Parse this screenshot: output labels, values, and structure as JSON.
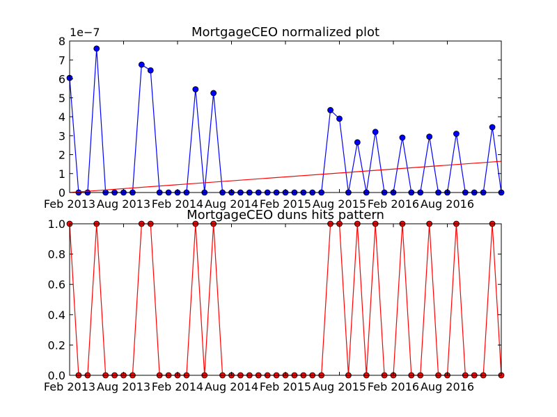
{
  "chart_data": [
    {
      "type": "line",
      "title": "MortgageCEO normalized plot",
      "xlabel": "",
      "ylabel": "",
      "y_offset_label": "1e−7",
      "x": [
        "2013-02",
        "2013-03",
        "2013-04",
        "2013-05",
        "2013-06",
        "2013-07",
        "2013-08",
        "2013-09",
        "2013-10",
        "2013-11",
        "2013-12",
        "2014-01",
        "2014-02",
        "2014-03",
        "2014-04",
        "2014-05",
        "2014-06",
        "2014-07",
        "2014-08",
        "2014-09",
        "2014-10",
        "2014-11",
        "2014-12",
        "2015-01",
        "2015-02",
        "2015-03",
        "2015-04",
        "2015-05",
        "2015-06",
        "2015-07",
        "2015-08",
        "2015-09",
        "2015-10",
        "2015-11",
        "2015-12",
        "2016-01",
        "2016-02",
        "2016-03",
        "2016-04",
        "2016-05",
        "2016-06",
        "2016-07",
        "2016-08",
        "2016-09",
        "2016-10",
        "2016-11",
        "2016-12",
        "2017-01",
        "2017-02"
      ],
      "xlim": [
        "2013-02",
        "2017-02"
      ],
      "ylim": [
        0,
        8
      ],
      "yticks": [
        "0",
        "1",
        "2",
        "3",
        "4",
        "5",
        "6",
        "7",
        "8"
      ],
      "xtick_labels": [
        "Feb 2013",
        "Aug 2013",
        "Feb 2014",
        "Aug 2014",
        "Feb 2015",
        "Aug 2015",
        "Feb 2016",
        "Aug 2016"
      ],
      "xtick_dates": [
        "2013-02",
        "2013-08",
        "2014-02",
        "2014-08",
        "2015-02",
        "2015-08",
        "2016-02",
        "2016-08"
      ],
      "grid": false,
      "series": [
        {
          "color": "#0000ff",
          "marker": "circle",
          "values": [
            6.05,
            0,
            0,
            7.6,
            0,
            0,
            0,
            0,
            6.75,
            6.45,
            0,
            0,
            0,
            0,
            5.45,
            0,
            5.25,
            0,
            0,
            0,
            0,
            0,
            0,
            0,
            0,
            0,
            0,
            0,
            0,
            4.35,
            3.9,
            0,
            2.65,
            0,
            3.2,
            0,
            0,
            2.9,
            0,
            0,
            2.95,
            0,
            0,
            3.1,
            0,
            0,
            0,
            3.45,
            0
          ]
        },
        {
          "color": "#ff0000",
          "marker": "none",
          "trend_x": [
            "2013-02",
            "2017-02"
          ],
          "trend_values": [
            0,
            1.65
          ]
        }
      ]
    },
    {
      "type": "line",
      "title": "MortgageCEO duns hits pattern",
      "xlabel": "",
      "ylabel": "",
      "x": [
        "2013-02",
        "2013-03",
        "2013-04",
        "2013-05",
        "2013-06",
        "2013-07",
        "2013-08",
        "2013-09",
        "2013-10",
        "2013-11",
        "2013-12",
        "2014-01",
        "2014-02",
        "2014-03",
        "2014-04",
        "2014-05",
        "2014-06",
        "2014-07",
        "2014-08",
        "2014-09",
        "2014-10",
        "2014-11",
        "2014-12",
        "2015-01",
        "2015-02",
        "2015-03",
        "2015-04",
        "2015-05",
        "2015-06",
        "2015-07",
        "2015-08",
        "2015-09",
        "2015-10",
        "2015-11",
        "2015-12",
        "2016-01",
        "2016-02",
        "2016-03",
        "2016-04",
        "2016-05",
        "2016-06",
        "2016-07",
        "2016-08",
        "2016-09",
        "2016-10",
        "2016-11",
        "2016-12",
        "2017-01",
        "2017-02"
      ],
      "xlim": [
        "2013-02",
        "2017-02"
      ],
      "ylim": [
        0,
        1
      ],
      "yticks": [
        "0.0",
        "0.2",
        "0.4",
        "0.6",
        "0.8",
        "1.0"
      ],
      "xtick_labels": [
        "Feb 2013",
        "Aug 2013",
        "Feb 2014",
        "Aug 2014",
        "Feb 2015",
        "Aug 2015",
        "Feb 2016",
        "Aug 2016"
      ],
      "xtick_dates": [
        "2013-02",
        "2013-08",
        "2014-02",
        "2014-08",
        "2015-02",
        "2015-08",
        "2016-02",
        "2016-08"
      ],
      "grid": false,
      "series": [
        {
          "color": "#ff0000",
          "marker": "circle",
          "values": [
            1,
            0,
            0,
            1,
            0,
            0,
            0,
            0,
            1,
            1,
            0,
            0,
            0,
            0,
            1,
            0,
            1,
            0,
            0,
            0,
            0,
            0,
            0,
            0,
            0,
            0,
            0,
            0,
            0,
            1,
            1,
            0,
            1,
            0,
            1,
            0,
            0,
            1,
            0,
            0,
            1,
            0,
            0,
            1,
            0,
            0,
            0,
            1,
            0
          ]
        }
      ]
    }
  ]
}
